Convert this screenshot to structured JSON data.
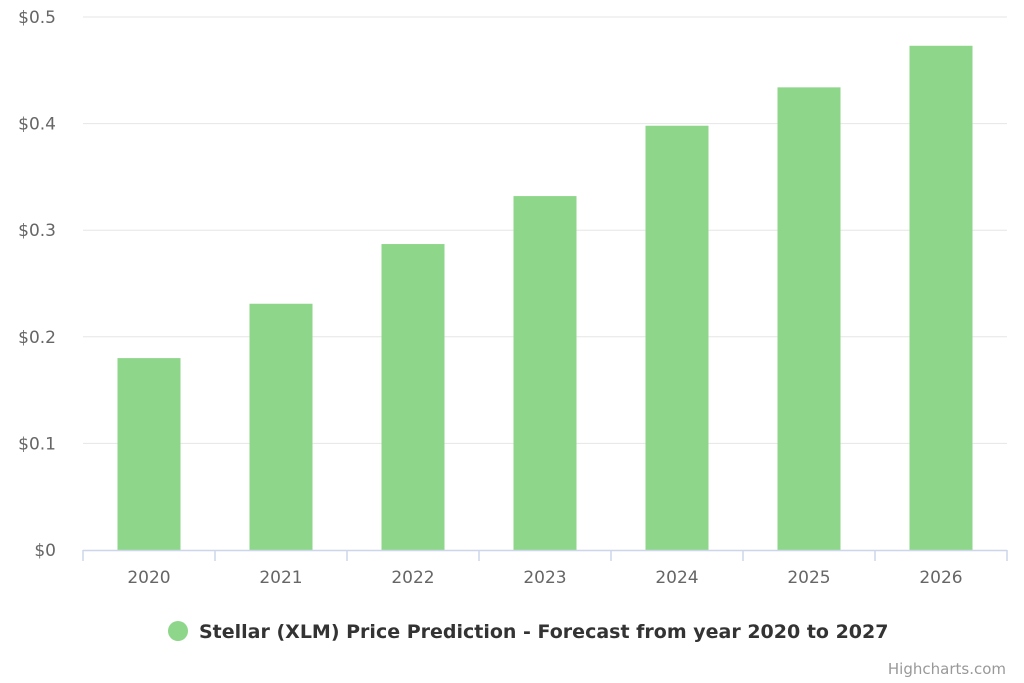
{
  "chart_data": {
    "type": "bar",
    "categories": [
      "2020",
      "2021",
      "2022",
      "2023",
      "2024",
      "2025",
      "2026"
    ],
    "series": [
      {
        "name": "Stellar (XLM) Price Prediction - Forecast from year 2020 to 2027",
        "values": [
          0.18,
          0.231,
          0.287,
          0.332,
          0.398,
          0.434,
          0.473
        ],
        "color": "#8dd68a"
      }
    ],
    "y_ticks": [
      "$0",
      "$0.1",
      "$0.2",
      "$0.3",
      "$0.4",
      "$0.5"
    ],
    "ylim": [
      0,
      0.5
    ],
    "grid": true,
    "legend_position": "bottom-center"
  },
  "credits": "Highcharts.com",
  "colors": {
    "bar": "#8dd68a",
    "grid": "#e6e6e6",
    "axis": "#ccd6eb"
  }
}
